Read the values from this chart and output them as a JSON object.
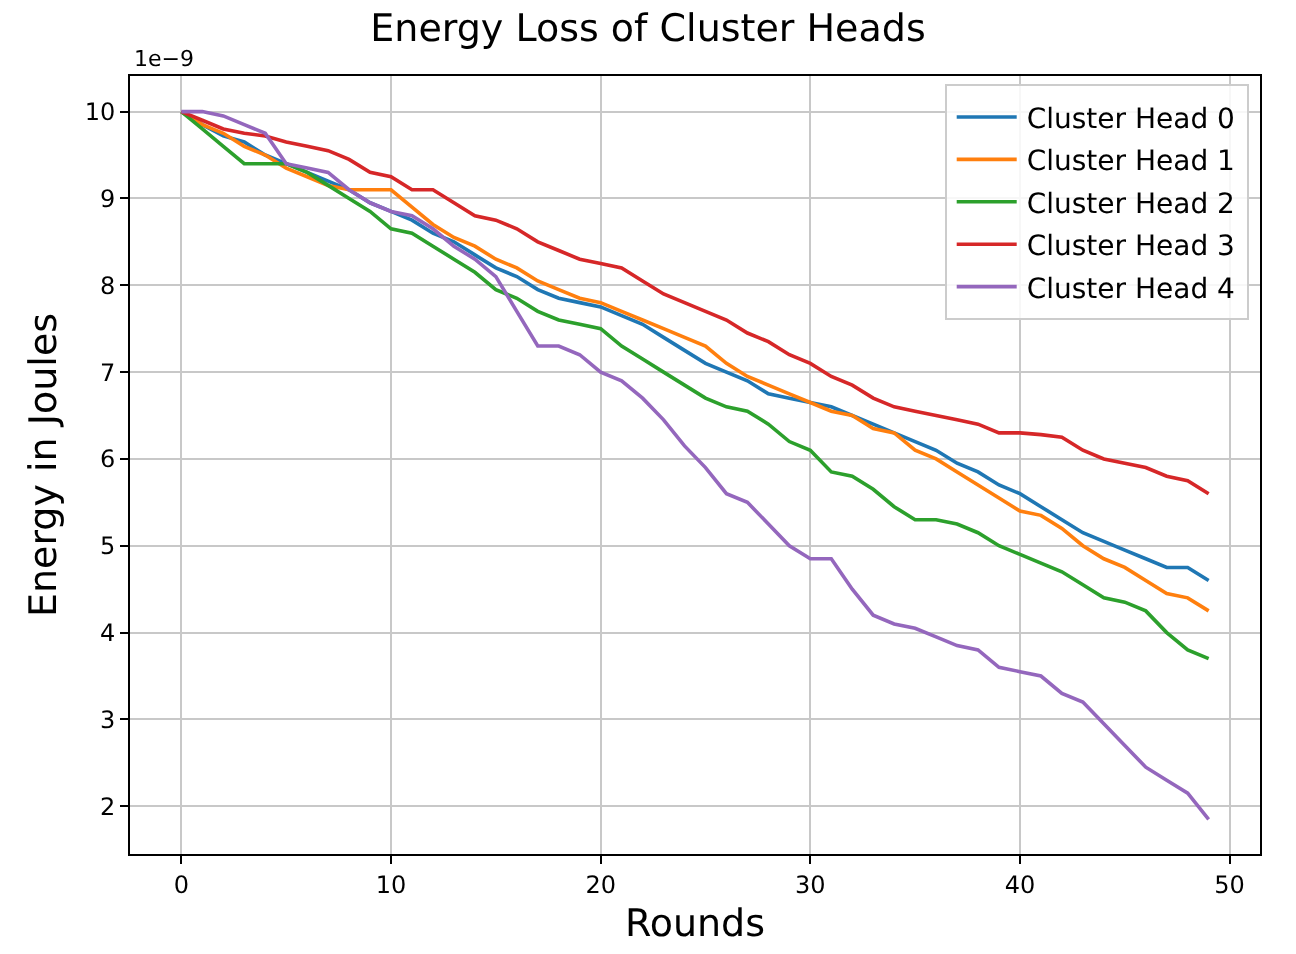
{
  "chart_data": {
    "type": "line",
    "title": "Energy Loss of Cluster Heads",
    "xlabel": "Rounds",
    "ylabel": "Energy in Joules",
    "annotations": [
      "1e−9"
    ],
    "x": [
      0,
      1,
      2,
      3,
      4,
      5,
      6,
      7,
      8,
      9,
      10,
      11,
      12,
      13,
      14,
      15,
      16,
      17,
      18,
      19,
      20,
      21,
      22,
      23,
      24,
      25,
      26,
      27,
      28,
      29,
      30,
      31,
      32,
      33,
      34,
      35,
      36,
      37,
      38,
      39,
      40,
      41,
      42,
      43,
      44,
      45,
      46,
      47,
      48,
      49
    ],
    "series": [
      {
        "name": "Cluster Head 0",
        "color": "#1f77b4",
        "values": [
          10,
          9.85,
          9.72,
          9.65,
          9.5,
          9.4,
          9.3,
          9.2,
          9.1,
          8.95,
          8.85,
          8.75,
          8.6,
          8.5,
          8.35,
          8.2,
          8.1,
          7.95,
          7.85,
          7.8,
          7.75,
          7.65,
          7.55,
          7.4,
          7.25,
          7.1,
          7.0,
          6.9,
          6.75,
          6.7,
          6.65,
          6.6,
          6.5,
          6.4,
          6.3,
          6.2,
          6.1,
          5.95,
          5.85,
          5.7,
          5.6,
          5.45,
          5.3,
          5.15,
          5.05,
          4.95,
          4.85,
          4.75,
          4.75,
          4.6
        ]
      },
      {
        "name": "Cluster Head 1",
        "color": "#ff7f0e",
        "values": [
          10,
          9.85,
          9.75,
          9.6,
          9.5,
          9.35,
          9.25,
          9.15,
          9.1,
          9.1,
          9.1,
          8.9,
          8.7,
          8.55,
          8.45,
          8.3,
          8.2,
          8.05,
          7.95,
          7.85,
          7.8,
          7.7,
          7.6,
          7.5,
          7.4,
          7.3,
          7.1,
          6.95,
          6.85,
          6.75,
          6.65,
          6.55,
          6.5,
          6.35,
          6.3,
          6.1,
          6.0,
          5.85,
          5.7,
          5.55,
          5.4,
          5.35,
          5.2,
          5.0,
          4.85,
          4.75,
          4.6,
          4.45,
          4.4,
          4.25
        ]
      },
      {
        "name": "Cluster Head 2",
        "color": "#2ca02c",
        "values": [
          10,
          9.8,
          9.6,
          9.4,
          9.4,
          9.4,
          9.3,
          9.15,
          9.0,
          8.85,
          8.65,
          8.6,
          8.45,
          8.3,
          8.15,
          7.95,
          7.85,
          7.7,
          7.6,
          7.55,
          7.5,
          7.3,
          7.15,
          7.0,
          6.85,
          6.7,
          6.6,
          6.55,
          6.4,
          6.2,
          6.1,
          5.85,
          5.8,
          5.65,
          5.45,
          5.3,
          5.3,
          5.25,
          5.15,
          5.0,
          4.9,
          4.8,
          4.7,
          4.55,
          4.4,
          4.35,
          4.25,
          4.0,
          3.8,
          3.7
        ]
      },
      {
        "name": "Cluster Head 3",
        "color": "#d62728",
        "values": [
          10,
          9.9,
          9.8,
          9.75,
          9.72,
          9.65,
          9.6,
          9.55,
          9.45,
          9.3,
          9.25,
          9.1,
          9.1,
          8.95,
          8.8,
          8.75,
          8.65,
          8.5,
          8.4,
          8.3,
          8.25,
          8.2,
          8.05,
          7.9,
          7.8,
          7.7,
          7.6,
          7.45,
          7.35,
          7.2,
          7.1,
          6.95,
          6.85,
          6.7,
          6.6,
          6.55,
          6.5,
          6.45,
          6.4,
          6.3,
          6.3,
          6.28,
          6.25,
          6.1,
          6.0,
          5.95,
          5.9,
          5.8,
          5.75,
          5.6
        ]
      },
      {
        "name": "Cluster Head 4",
        "color": "#9467bd",
        "values": [
          10,
          10,
          9.95,
          9.85,
          9.75,
          9.4,
          9.35,
          9.3,
          9.1,
          8.95,
          8.85,
          8.8,
          8.65,
          8.45,
          8.3,
          8.1,
          7.7,
          7.3,
          7.3,
          7.2,
          7.0,
          6.9,
          6.7,
          6.45,
          6.15,
          5.9,
          5.6,
          5.5,
          5.25,
          5.0,
          4.85,
          4.85,
          4.5,
          4.2,
          4.1,
          4.05,
          3.95,
          3.85,
          3.8,
          3.6,
          3.55,
          3.5,
          3.3,
          3.2,
          2.95,
          2.7,
          2.45,
          2.3,
          2.15,
          1.85
        ]
      }
    ],
    "xlim": [
      -2.45,
      51.45
    ],
    "xticks": [
      0,
      10,
      20,
      30,
      40,
      50
    ],
    "ylim": [
      1.45,
      10.41
    ],
    "yticks": [
      2,
      3,
      4,
      5,
      6,
      7,
      8,
      9,
      10
    ],
    "grid": true,
    "legend": "top right",
    "marker": "none",
    "line_style": "solid"
  }
}
